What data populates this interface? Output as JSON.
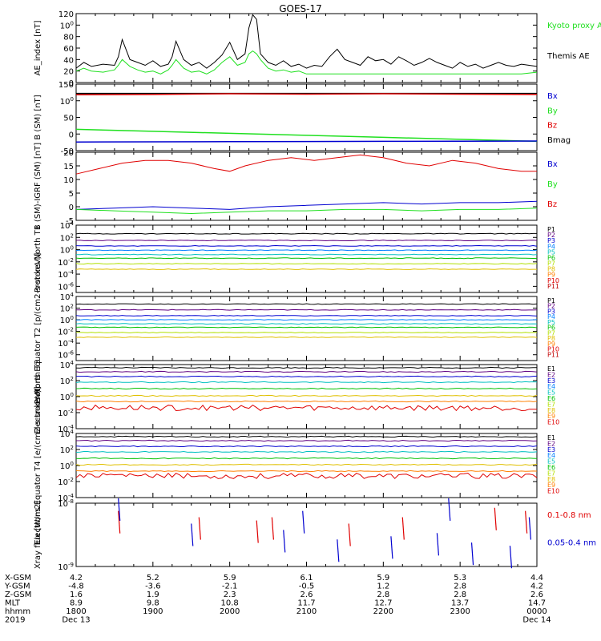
{
  "title": "GOES-17",
  "colors": {
    "frame": "#000000",
    "red": "#e00000",
    "green": "#20e020",
    "blue": "#0000d0"
  },
  "chart_data": [
    {
      "type": "line",
      "ylabel": "AE_index [nT]",
      "ylim": [
        0,
        120
      ],
      "yticks": [
        "0",
        "20",
        "40",
        "60",
        "80",
        "100",
        "120"
      ],
      "legend": [
        "Kyoto proxy AE",
        "Themis AE"
      ],
      "series": [
        {
          "name": "Themis AE",
          "color": "#000000",
          "x": [
            18.0,
            18.1,
            18.2,
            18.35,
            18.5,
            18.55,
            18.6,
            18.7,
            18.8,
            18.9,
            19.0,
            19.1,
            19.2,
            19.25,
            19.3,
            19.4,
            19.5,
            19.6,
            19.7,
            19.8,
            19.9,
            20.0,
            20.1,
            20.2,
            20.25,
            20.3,
            20.35,
            20.4,
            20.5,
            20.6,
            20.7,
            20.8,
            20.9,
            21.0,
            21.1,
            21.2,
            21.3,
            21.4,
            21.5,
            21.6,
            21.7,
            21.8,
            21.9,
            22.0,
            22.1,
            22.2,
            22.3,
            22.4,
            22.5,
            22.6,
            22.7,
            22.8,
            22.9,
            23.0,
            23.1,
            23.2,
            23.3,
            23.4,
            23.5,
            23.6,
            23.7,
            23.8,
            23.9,
            24.0
          ],
          "y": [
            25,
            35,
            28,
            32,
            30,
            45,
            75,
            40,
            35,
            30,
            38,
            28,
            32,
            45,
            72,
            40,
            30,
            35,
            25,
            35,
            48,
            70,
            40,
            50,
            95,
            118,
            110,
            50,
            35,
            30,
            38,
            28,
            32,
            25,
            30,
            28,
            45,
            58,
            40,
            35,
            30,
            45,
            38,
            40,
            32,
            45,
            38,
            30,
            35,
            42,
            35,
            30,
            25,
            35,
            28,
            32,
            25,
            30,
            35,
            30,
            28,
            32,
            30,
            28
          ]
        },
        {
          "name": "Kyoto proxy AE",
          "color": "#20e020",
          "x": [
            18.0,
            18.1,
            18.2,
            18.35,
            18.5,
            18.55,
            18.6,
            18.7,
            18.8,
            18.9,
            19.0,
            19.1,
            19.2,
            19.25,
            19.3,
            19.4,
            19.5,
            19.6,
            19.7,
            19.8,
            19.9,
            20.0,
            20.1,
            20.2,
            20.25,
            20.3,
            20.35,
            20.4,
            20.5,
            20.6,
            20.7,
            20.8,
            20.9,
            21.0,
            21.2,
            21.4,
            21.6,
            21.8,
            22.0,
            22.2,
            22.4,
            22.6,
            22.8,
            23.0,
            23.2,
            23.4,
            23.6,
            23.8,
            24.0
          ],
          "y": [
            20,
            25,
            20,
            18,
            22,
            30,
            40,
            28,
            22,
            18,
            20,
            15,
            22,
            30,
            40,
            25,
            18,
            20,
            15,
            22,
            35,
            45,
            30,
            35,
            50,
            55,
            50,
            40,
            25,
            20,
            22,
            18,
            20,
            15,
            15,
            15,
            15,
            15,
            15,
            15,
            15,
            15,
            15,
            15,
            15,
            15,
            15,
            15,
            18
          ]
        }
      ]
    },
    {
      "type": "line",
      "ylabel": "B (SM) [nT]",
      "ylim": [
        -50,
        150
      ],
      "yticks": [
        "-50",
        "0",
        "50",
        "100",
        "150"
      ],
      "legend": [
        "Bx",
        "By",
        "Bz",
        "Bmag"
      ],
      "series": [
        {
          "name": "Bmag",
          "color": "#000000",
          "x": [
            18,
            24
          ],
          "y": [
            122,
            122
          ]
        },
        {
          "name": "Bz",
          "color": "#e00000",
          "x": [
            18,
            19,
            20,
            21,
            22,
            23,
            24
          ],
          "y": [
            118,
            119,
            121,
            120,
            121,
            120,
            119
          ]
        },
        {
          "name": "By",
          "color": "#20e020",
          "x": [
            18,
            19,
            20,
            21,
            22,
            23,
            24
          ],
          "y": [
            14,
            8,
            2,
            -4,
            -10,
            -16,
            -22
          ]
        },
        {
          "name": "Bx",
          "color": "#0000d0",
          "x": [
            18,
            20,
            22,
            24
          ],
          "y": [
            -24,
            -23,
            -22,
            -21
          ]
        }
      ]
    },
    {
      "type": "line",
      "ylabel": "B (SM)-IGRF (SM) [nT]",
      "ylim": [
        -5,
        20
      ],
      "yticks": [
        "-5",
        "0",
        "5",
        "10",
        "15",
        "20"
      ],
      "legend": [
        "Bx",
        "By",
        "Bz"
      ],
      "series": [
        {
          "name": "Bz",
          "color": "#e00000",
          "x": [
            18.0,
            18.3,
            18.6,
            18.9,
            19.2,
            19.5,
            19.8,
            20.0,
            20.2,
            20.5,
            20.8,
            21.1,
            21.4,
            21.7,
            22.0,
            22.3,
            22.6,
            22.9,
            23.2,
            23.5,
            23.8,
            24.0
          ],
          "y": [
            12,
            14,
            16,
            17,
            17,
            16,
            14,
            13,
            15,
            17,
            18,
            17,
            18,
            19,
            18,
            16,
            15,
            17,
            16,
            14,
            13,
            13
          ]
        },
        {
          "name": "Bx",
          "color": "#0000d0",
          "x": [
            18.0,
            18.5,
            19.0,
            19.5,
            20.0,
            20.5,
            21.0,
            21.5,
            22.0,
            22.5,
            23.0,
            23.5,
            24.0
          ],
          "y": [
            -1,
            -0.5,
            0,
            -0.5,
            -1,
            0,
            0.5,
            1,
            1.5,
            1,
            1.5,
            1.5,
            2
          ]
        },
        {
          "name": "By",
          "color": "#20e020",
          "x": [
            18.0,
            18.5,
            19.0,
            19.5,
            20.0,
            20.5,
            21.0,
            21.5,
            22.0,
            22.5,
            23.0,
            23.5,
            24.0
          ],
          "y": [
            -1,
            -1.5,
            -2,
            -2.5,
            -2,
            -1.5,
            -1.5,
            -1,
            -1,
            -1.5,
            -1,
            -1,
            -0.5
          ]
        }
      ]
    },
    {
      "type": "line",
      "ylabel": "Protons North T1",
      "ylim": [
        -7,
        4
      ],
      "log": true,
      "yticks": [
        "10-6",
        "10-4",
        "10-2",
        "100",
        "102",
        "104"
      ],
      "legend": [
        "P1",
        "P2",
        "P3",
        "P4",
        "P5",
        "P6",
        "P7",
        "P8",
        "P9",
        "P10",
        "P11"
      ],
      "series": [
        {
          "name": "P1",
          "color": "#000000",
          "level": 2.6
        },
        {
          "name": "P2",
          "color": "#600080",
          "level": 1.5
        },
        {
          "name": "P3",
          "color": "#0000d0",
          "level": 0.6
        },
        {
          "name": "P4",
          "color": "#0080ff",
          "level": -0.1
        },
        {
          "name": "P5",
          "color": "#00c0c0",
          "level": -0.8
        },
        {
          "name": "P6",
          "color": "#00c000",
          "level": -1.4
        },
        {
          "name": "P7",
          "color": "#b0e000",
          "level": -2.3
        },
        {
          "name": "P8",
          "color": "#e0c000",
          "level": -3.2
        }
      ]
    },
    {
      "type": "line",
      "ylabel": "Protons Equator T2 [p/(cm2-s-sr-keV)]",
      "ylim": [
        -7,
        4
      ],
      "log": true,
      "yticks": [
        "10-6",
        "10-4",
        "10-2",
        "100",
        "102",
        "104"
      ],
      "legend": [
        "P1",
        "P2",
        "P3",
        "P4",
        "P5",
        "P6",
        "P7",
        "P8",
        "P9",
        "P10",
        "P11"
      ],
      "series": [
        {
          "name": "P1",
          "color": "#000000",
          "level": 2.7
        },
        {
          "name": "P2",
          "color": "#600080",
          "level": 1.7
        },
        {
          "name": "P3",
          "color": "#0000d0",
          "level": 0.7
        },
        {
          "name": "P4",
          "color": "#0080ff",
          "level": 0.0
        },
        {
          "name": "P5",
          "color": "#00c0c0",
          "level": -0.7
        },
        {
          "name": "P6",
          "color": "#00c000",
          "level": -1.3
        },
        {
          "name": "P7",
          "color": "#b0e000",
          "level": -2.2
        },
        {
          "name": "P8",
          "color": "#e0c000",
          "level": -3.0
        }
      ]
    },
    {
      "type": "line",
      "ylabel": "Electrons North T3",
      "ylim": [
        -4,
        4
      ],
      "log": true,
      "yticks": [
        "10-4",
        "10-2",
        "100",
        "102",
        "104"
      ],
      "legend": [
        "E1",
        "E2",
        "E3",
        "E4",
        "E5",
        "E6",
        "E7",
        "E8",
        "E9",
        "E10"
      ],
      "series": [
        {
          "name": "E1",
          "color": "#000000",
          "level": 3.6
        },
        {
          "name": "E2",
          "color": "#600080",
          "level": 3.1
        },
        {
          "name": "E3",
          "color": "#0000d0",
          "level": 2.5
        },
        {
          "name": "E4",
          "color": "#00c0c0",
          "level": 1.8
        },
        {
          "name": "E5",
          "color": "#00c000",
          "level": 1.0
        },
        {
          "name": "E6",
          "color": "#e0c000",
          "level": 0.1
        },
        {
          "name": "E7",
          "color": "#ff8000",
          "level": -0.6
        },
        {
          "name": "E8",
          "color": "#e00000",
          "level": -1.4
        }
      ]
    },
    {
      "type": "line",
      "ylabel": "Electrons Equator T4 [e/(cm2-s-sr-keV)]",
      "ylim": [
        -4,
        4
      ],
      "log": true,
      "yticks": [
        "10-4",
        "10-2",
        "100",
        "102",
        "104"
      ],
      "legend": [
        "E1",
        "E2",
        "E3",
        "E4",
        "E5",
        "E6",
        "E7",
        "E8",
        "E9",
        "E10"
      ],
      "series": [
        {
          "name": "E1",
          "color": "#000000",
          "level": 3.6
        },
        {
          "name": "E2",
          "color": "#600080",
          "level": 3.1
        },
        {
          "name": "E3",
          "color": "#0000d0",
          "level": 2.4
        },
        {
          "name": "E4",
          "color": "#00c0c0",
          "level": 1.7
        },
        {
          "name": "E5",
          "color": "#00c000",
          "level": 0.9
        },
        {
          "name": "E6",
          "color": "#e0c000",
          "level": 0.1
        },
        {
          "name": "E7",
          "color": "#ff8000",
          "level": -0.7
        },
        {
          "name": "E8",
          "color": "#e00000",
          "level": -1.3
        }
      ]
    },
    {
      "type": "line",
      "ylabel": "Xray flux [W/m2]",
      "ylim": [
        -9,
        -8
      ],
      "log": true,
      "yticks": [
        "10-9",
        "10-8"
      ],
      "legend": [
        "0.1-0.8 nm",
        "0.05-0.4 nm"
      ],
      "series": [
        {
          "name": "0.1-0.8 nm",
          "color": "#e00000",
          "x": [
            18.55,
            19.6,
            20.35,
            20.55,
            21.55,
            22.25,
            23.45,
            23.85
          ],
          "y": [
            -8.3,
            -8.4,
            -8.45,
            -8.4,
            -8.5,
            -8.4,
            -8.25,
            -8.3
          ]
        },
        {
          "name": "0.05-0.4 nm",
          "color": "#0000d0",
          "x": [
            18.55,
            19.5,
            20.7,
            20.95,
            21.4,
            22.1,
            22.7,
            22.85,
            23.15,
            23.65,
            23.9
          ],
          "y": [
            -8.1,
            -8.5,
            -8.6,
            -8.3,
            -8.75,
            -8.7,
            -8.65,
            -8.1,
            -8.8,
            -8.85,
            -8.4
          ]
        }
      ]
    }
  ],
  "xaxis": {
    "row_labels": [
      "X-GSM",
      "Y-GSM",
      "Z-GSM",
      "MLT",
      "hhmm",
      "2019"
    ],
    "columns": [
      {
        "x": 18,
        "vals": [
          "4.2",
          "-4.8",
          "1.6",
          "8.9",
          "1800",
          "Dec 13"
        ]
      },
      {
        "x": 19,
        "vals": [
          "5.2",
          "-3.6",
          "1.9",
          "9.8",
          "1900",
          ""
        ]
      },
      {
        "x": 20,
        "vals": [
          "5.9",
          "-2.1",
          "2.3",
          "10.8",
          "2000",
          ""
        ]
      },
      {
        "x": 21,
        "vals": [
          "6.1",
          "-0.5",
          "2.6",
          "11.7",
          "2100",
          ""
        ]
      },
      {
        "x": 22,
        "vals": [
          "5.9",
          "1.2",
          "2.8",
          "12.7",
          "2200",
          ""
        ]
      },
      {
        "x": 23,
        "vals": [
          "5.3",
          "2.8",
          "2.8",
          "13.7",
          "2300",
          ""
        ]
      },
      {
        "x": 24,
        "vals": [
          "4.4",
          "4.2",
          "2.6",
          "14.7",
          "0000",
          "Dec 14"
        ]
      }
    ]
  }
}
